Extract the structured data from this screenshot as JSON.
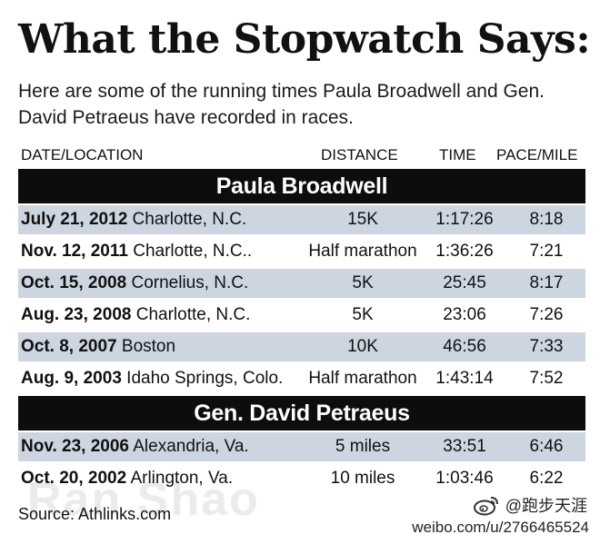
{
  "title": "What the Stopwatch Says:",
  "subtitle": "Here are some of the running times Paula Broadwell and Gen. David Petraeus have recorded in races.",
  "columns": {
    "date_location": "DATE/LOCATION",
    "distance": "DISTANCE",
    "time": "TIME",
    "pace": "PACE/MILE"
  },
  "sections": [
    {
      "name": "Paula Broadwell",
      "rows": [
        {
          "date": "July 21, 2012",
          "location": "Charlotte, N.C.",
          "distance": "15K",
          "time": "1:17:26",
          "pace": "8:18"
        },
        {
          "date": "Nov. 12, 2011",
          "location": "Charlotte, N.C..",
          "distance": "Half marathon",
          "time": "1:36:26",
          "pace": "7:21"
        },
        {
          "date": "Oct. 15, 2008",
          "location": "Cornelius, N.C.",
          "distance": "5K",
          "time": "25:45",
          "pace": "8:17"
        },
        {
          "date": "Aug. 23, 2008",
          "location": "Charlotte, N.C.",
          "distance": "5K",
          "time": "23:06",
          "pace": "7:26"
        },
        {
          "date": "Oct. 8, 2007",
          "location": "Boston",
          "distance": "10K",
          "time": "46:56",
          "pace": "7:33"
        },
        {
          "date": "Aug. 9, 2003",
          "location": "Idaho Springs, Colo.",
          "distance": "Half marathon",
          "time": "1:43:14",
          "pace": "7:52"
        }
      ]
    },
    {
      "name": "Gen. David Petraeus",
      "rows": [
        {
          "date": "Nov. 23, 2006",
          "location": "Alexandria, Va.",
          "distance": "5 miles",
          "time": "33:51",
          "pace": "6:46"
        },
        {
          "date": "Oct. 20, 2002",
          "location": "Arlington, Va.",
          "distance": "10 miles",
          "time": "1:03:46",
          "pace": "6:22"
        }
      ]
    }
  ],
  "source": "Source: Athlinks.com",
  "watermark": "Ran Shao",
  "weibo": {
    "handle": "@跑步天涯",
    "url": "weibo.com/u/2766465524",
    "icon": "weibo-logo-icon"
  },
  "colors": {
    "row_shade": "#cdd5e1",
    "section_bar": "#0d0d0d"
  }
}
